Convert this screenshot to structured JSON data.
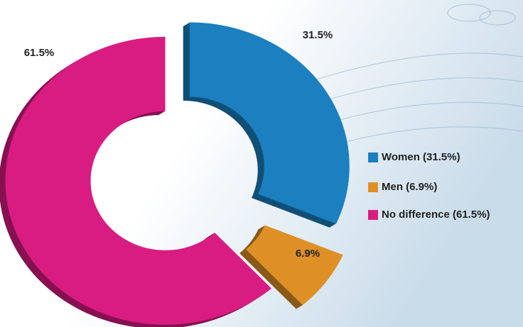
{
  "chart_data": {
    "type": "donut",
    "categories": [
      "Women (31.5%)",
      "Men (6.9%)",
      "No difference (61.5%)"
    ],
    "values": [
      31.5,
      6.9,
      61.5
    ],
    "value_labels": [
      "31.5%",
      "6.9%",
      "61.5%"
    ],
    "colors": [
      "#1b7fc0",
      "#de9026",
      "#d91c82"
    ],
    "legend": "right"
  }
}
